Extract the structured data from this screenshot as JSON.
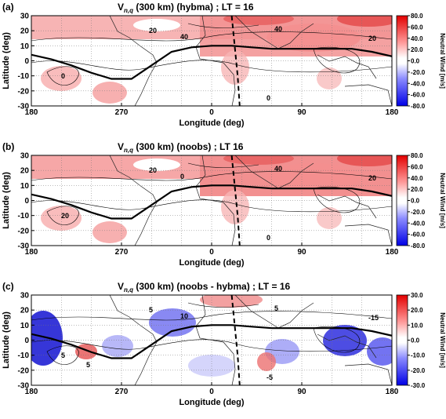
{
  "chart_data": [
    {
      "type": "heatmap",
      "panel_letter": "(a)",
      "title_main": "V",
      "title_sub": "n,q",
      "title_rest": " (300 km) (hybma) ; LT = 16",
      "xlabel": "Longitude (deg)",
      "ylabel": "Latitude (deg)",
      "x_ticks": [
        "180",
        "270",
        "0",
        "90",
        "180"
      ],
      "y_ticks": [
        "30",
        "20",
        "10",
        "0",
        "-10",
        "-20",
        "-30"
      ],
      "colorbar_label": "Neutral Wind [m/s]",
      "colorbar_ticks": [
        "80.0",
        "60.0",
        "40.0",
        "20.0",
        "0.0",
        "-20.0",
        "-40.0",
        "-60.0",
        "-80.0"
      ],
      "colorbar_range": [
        -80,
        80
      ],
      "contour_labels": [
        "40",
        "20",
        "0",
        "40",
        "20",
        "0"
      ],
      "magnetic_equator": {
        "x": [
          180,
          200,
          220,
          240,
          260,
          280,
          300,
          320,
          340,
          0,
          20,
          40,
          60,
          80,
          100,
          120,
          140,
          160,
          180
        ],
        "y": [
          4,
          1,
          -3,
          -8,
          -12,
          -12,
          -3,
          6,
          9,
          10,
          10,
          9,
          8,
          8,
          8,
          8,
          8,
          6,
          3
        ]
      },
      "terminator": {
        "x": [
          20,
          23,
          26,
          28
        ],
        "y": [
          30,
          10,
          -10,
          -30
        ]
      }
    },
    {
      "type": "heatmap",
      "panel_letter": "(b)",
      "title_main": "V",
      "title_sub": "n,q",
      "title_rest": " (300 km) (noobs) ; LT 16",
      "xlabel": "Longitude (deg)",
      "ylabel": "Latitude (deg)",
      "x_ticks": [
        "180",
        "270",
        "0",
        "90",
        "180"
      ],
      "y_ticks": [
        "30",
        "20",
        "10",
        "0",
        "-10",
        "-20",
        "-30"
      ],
      "colorbar_label": "Neutral Wind [m/s]",
      "colorbar_ticks": [
        "80.0",
        "60.0",
        "40.0",
        "20.0",
        "0.0",
        "-20.0",
        "-40.0",
        "-60.0",
        "-80.0"
      ],
      "colorbar_range": [
        -80,
        80
      ],
      "contour_labels": [
        "0",
        "20",
        "20",
        "40",
        "20",
        "0"
      ],
      "magnetic_equator": {
        "x": [
          180,
          200,
          220,
          240,
          260,
          280,
          300,
          320,
          340,
          0,
          20,
          40,
          60,
          80,
          100,
          120,
          140,
          160,
          180
        ],
        "y": [
          4,
          1,
          -3,
          -8,
          -12,
          -12,
          -3,
          6,
          9,
          10,
          10,
          9,
          8,
          8,
          8,
          8,
          8,
          6,
          3
        ]
      },
      "terminator": {
        "x": [
          20,
          23,
          26,
          28
        ],
        "y": [
          30,
          10,
          -10,
          -30
        ]
      }
    },
    {
      "type": "heatmap",
      "panel_letter": "(c)",
      "title_main": "V",
      "title_sub": "n,q",
      "title_rest": " (300 km) (noobs - hybma) ; LT = 16",
      "xlabel": "Longitude (deg)",
      "ylabel": "Latitude (deg)",
      "x_ticks": [
        "180",
        "270",
        "0",
        "90",
        "180"
      ],
      "y_ticks": [
        "30",
        "20",
        "10",
        "0",
        "-10",
        "-20",
        "-30"
      ],
      "colorbar_label": "Neutral Wind [m/s]",
      "colorbar_ticks": [
        "30.0",
        "20.0",
        "10.0",
        "0.0",
        "-10.0",
        "-20.0",
        "-30.0"
      ],
      "colorbar_range": [
        -30,
        30
      ],
      "contour_labels": [
        "10",
        "5",
        "5",
        "5",
        "-15",
        "-5",
        "5"
      ],
      "magnetic_equator": {
        "x": [
          180,
          200,
          220,
          240,
          260,
          280,
          300,
          320,
          340,
          0,
          20,
          40,
          60,
          80,
          100,
          120,
          140,
          160,
          180
        ],
        "y": [
          4,
          1,
          -3,
          -8,
          -12,
          -12,
          -3,
          6,
          9,
          10,
          10,
          9,
          8,
          8,
          8,
          8,
          8,
          6,
          3
        ]
      },
      "terminator": {
        "x": [
          20,
          23,
          26,
          28
        ],
        "y": [
          30,
          10,
          -10,
          -30
        ]
      }
    }
  ]
}
